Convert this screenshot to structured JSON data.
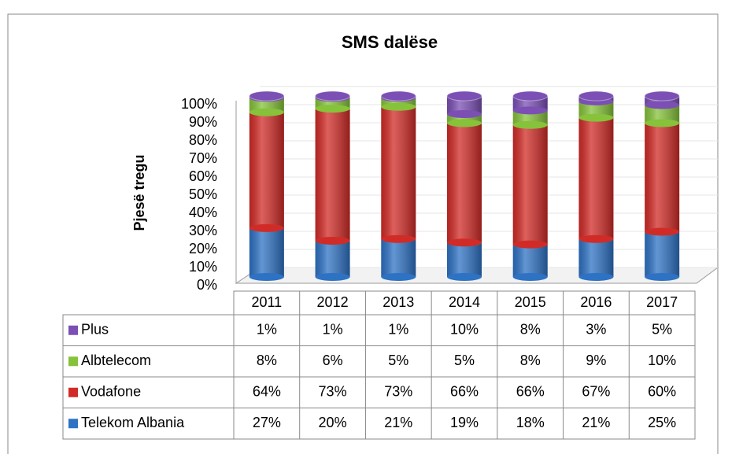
{
  "chart_data": {
    "type": "stacked-bar-3d",
    "title": "SMS dalëse",
    "y_label": "Pjesë tregu",
    "categories": [
      "2011",
      "2012",
      "2013",
      "2014",
      "2015",
      "2016",
      "2017"
    ],
    "series": [
      {
        "name": "Telekom Albania",
        "color": "#2e72c4",
        "values": [
          27,
          20,
          21,
          19,
          18,
          21,
          25
        ],
        "value_labels": [
          "27%",
          "20%",
          "21%",
          "19%",
          "18%",
          "21%",
          "25%"
        ]
      },
      {
        "name": "Vodafone",
        "color": "#d12b27",
        "values": [
          64,
          73,
          73,
          66,
          66,
          67,
          60
        ],
        "value_labels": [
          "64%",
          "73%",
          "73%",
          "66%",
          "66%",
          "67%",
          "60%"
        ]
      },
      {
        "name": "Albtelecom",
        "color": "#86c23a",
        "values": [
          8,
          6,
          5,
          5,
          8,
          9,
          10
        ],
        "value_labels": [
          "8%",
          "6%",
          "5%",
          "5%",
          "8%",
          "9%",
          "10%"
        ]
      },
      {
        "name": "Plus",
        "color": "#7b4fb4",
        "values": [
          1,
          1,
          1,
          10,
          8,
          3,
          5
        ],
        "value_labels": [
          "1%",
          "1%",
          "1%",
          "10%",
          "8%",
          "3%",
          "5%"
        ]
      }
    ],
    "ylim": [
      0,
      100
    ],
    "yticks": [
      {
        "value": 0,
        "label": "0%"
      },
      {
        "value": 10,
        "label": "10%"
      },
      {
        "value": 20,
        "label": "20%"
      },
      {
        "value": 30,
        "label": "30%"
      },
      {
        "value": 40,
        "label": "40%"
      },
      {
        "value": 50,
        "label": "50%"
      },
      {
        "value": 60,
        "label": "60%"
      },
      {
        "value": 70,
        "label": "70%"
      },
      {
        "value": 80,
        "label": "80%"
      },
      {
        "value": 90,
        "label": "90%"
      },
      {
        "value": 100,
        "label": "100%"
      }
    ],
    "grid": true,
    "data_table": true
  }
}
